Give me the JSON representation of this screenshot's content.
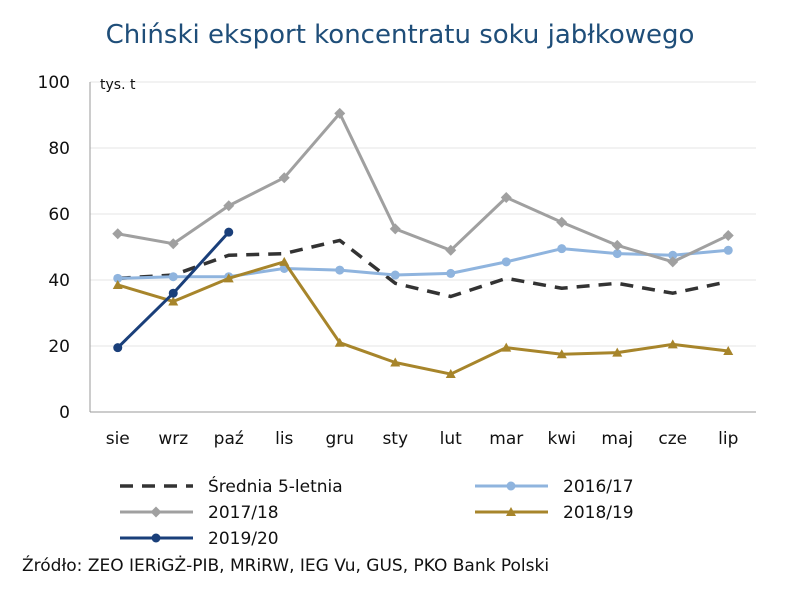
{
  "chart_data": {
    "type": "line",
    "title": "Chiński eksport koncentratu soku jabłkowego",
    "ylabel": "tys. t",
    "xlabel": "",
    "ylim": [
      0,
      100
    ],
    "yticks": [
      0,
      20,
      40,
      60,
      80,
      100
    ],
    "grid": true,
    "legend": "bottom",
    "categories": [
      "sie",
      "wrz",
      "paź",
      "lis",
      "gru",
      "sty",
      "lut",
      "mar",
      "kwi",
      "maj",
      "cze",
      "lip"
    ],
    "series": [
      {
        "name": "Średnia 5-letnia",
        "color": "#333333",
        "dash": true,
        "marker": "none",
        "values": [
          40.5,
          41.5,
          47.5,
          48,
          52,
          39,
          35,
          40.5,
          37.5,
          39,
          36,
          39.5
        ]
      },
      {
        "name": "2016/17",
        "color": "#8fb4de",
        "dash": false,
        "marker": "circle",
        "values": [
          40.5,
          41,
          41,
          43.5,
          43,
          41.5,
          42,
          45.5,
          49.5,
          48,
          47.5,
          49
        ]
      },
      {
        "name": "2017/18",
        "color": "#a0a0a0",
        "dash": false,
        "marker": "diamond",
        "values": [
          54,
          51,
          62.5,
          71,
          90.5,
          55.5,
          49,
          65,
          57.5,
          50.5,
          45.5,
          53.5
        ]
      },
      {
        "name": "2018/19",
        "color": "#a7852b",
        "dash": false,
        "marker": "triangle",
        "values": [
          38.5,
          33.5,
          40.5,
          45.5,
          21,
          15,
          11.5,
          19.5,
          17.5,
          18,
          20.5,
          18.5
        ]
      },
      {
        "name": "2019/20",
        "color": "#1a3f7a",
        "dash": false,
        "marker": "circle",
        "values": [
          19.5,
          36,
          54.5,
          null,
          null,
          null,
          null,
          null,
          null,
          null,
          null,
          null
        ]
      }
    ]
  },
  "source": "Źródło: ZEO IERiGŻ-PIB, MRiRW, IEG Vu, GUS, PKO Bank Polski"
}
